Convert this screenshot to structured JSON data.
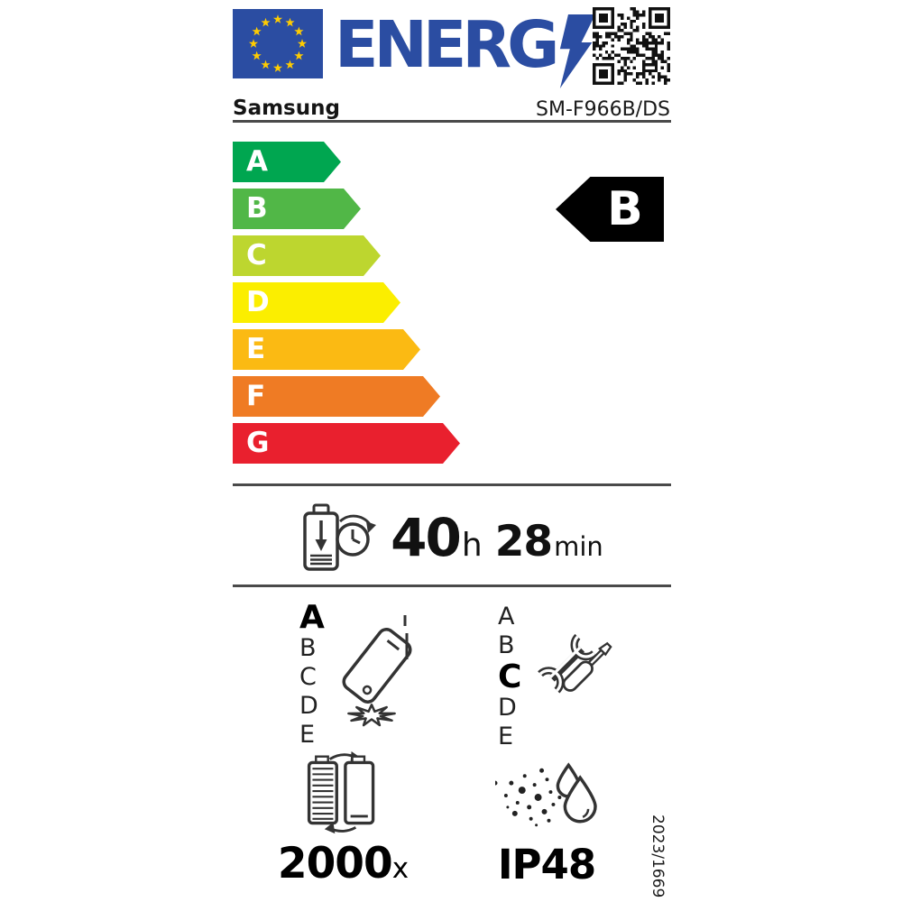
{
  "header": {
    "logo_text": "ENERG",
    "logo_note": "lightning bolt forms the Y of ENERGY",
    "logo_color": "#2b4da2",
    "flag_color": "#2b4da2",
    "flag_star_color": "#ffcc00"
  },
  "product": {
    "brand": "Samsung",
    "model": "SM-F966B/DS"
  },
  "energy_scale": {
    "classes": [
      {
        "label": "A",
        "color": "#00a650"
      },
      {
        "label": "B",
        "color": "#51b747"
      },
      {
        "label": "C",
        "color": "#bdd62f"
      },
      {
        "label": "D",
        "color": "#fbee00"
      },
      {
        "label": "E",
        "color": "#fbba13"
      },
      {
        "label": "F",
        "color": "#ef7b24"
      },
      {
        "label": "G",
        "color": "#e9202e"
      }
    ],
    "rating": "B",
    "rating_bg": "#000000"
  },
  "battery_endurance": {
    "hours": "40",
    "hours_unit": "h",
    "minutes": "28",
    "minutes_unit": "min"
  },
  "drop_resistance": {
    "scale": [
      "A",
      "B",
      "C",
      "D",
      "E"
    ],
    "rating": "A"
  },
  "repairability": {
    "scale": [
      "A",
      "B",
      "C",
      "D",
      "E"
    ],
    "rating": "C"
  },
  "battery_cycles": {
    "value": "2000",
    "unit": "x"
  },
  "ingress_protection": {
    "value": "IP48"
  },
  "regulation": "2023/1669",
  "icons": [
    "eu-flag",
    "lightning-bolt-icon",
    "qr-code",
    "battery-clock-icon",
    "phone-drop-icon",
    "tools-icon",
    "battery-cycle-icon",
    "dust-water-icon"
  ]
}
